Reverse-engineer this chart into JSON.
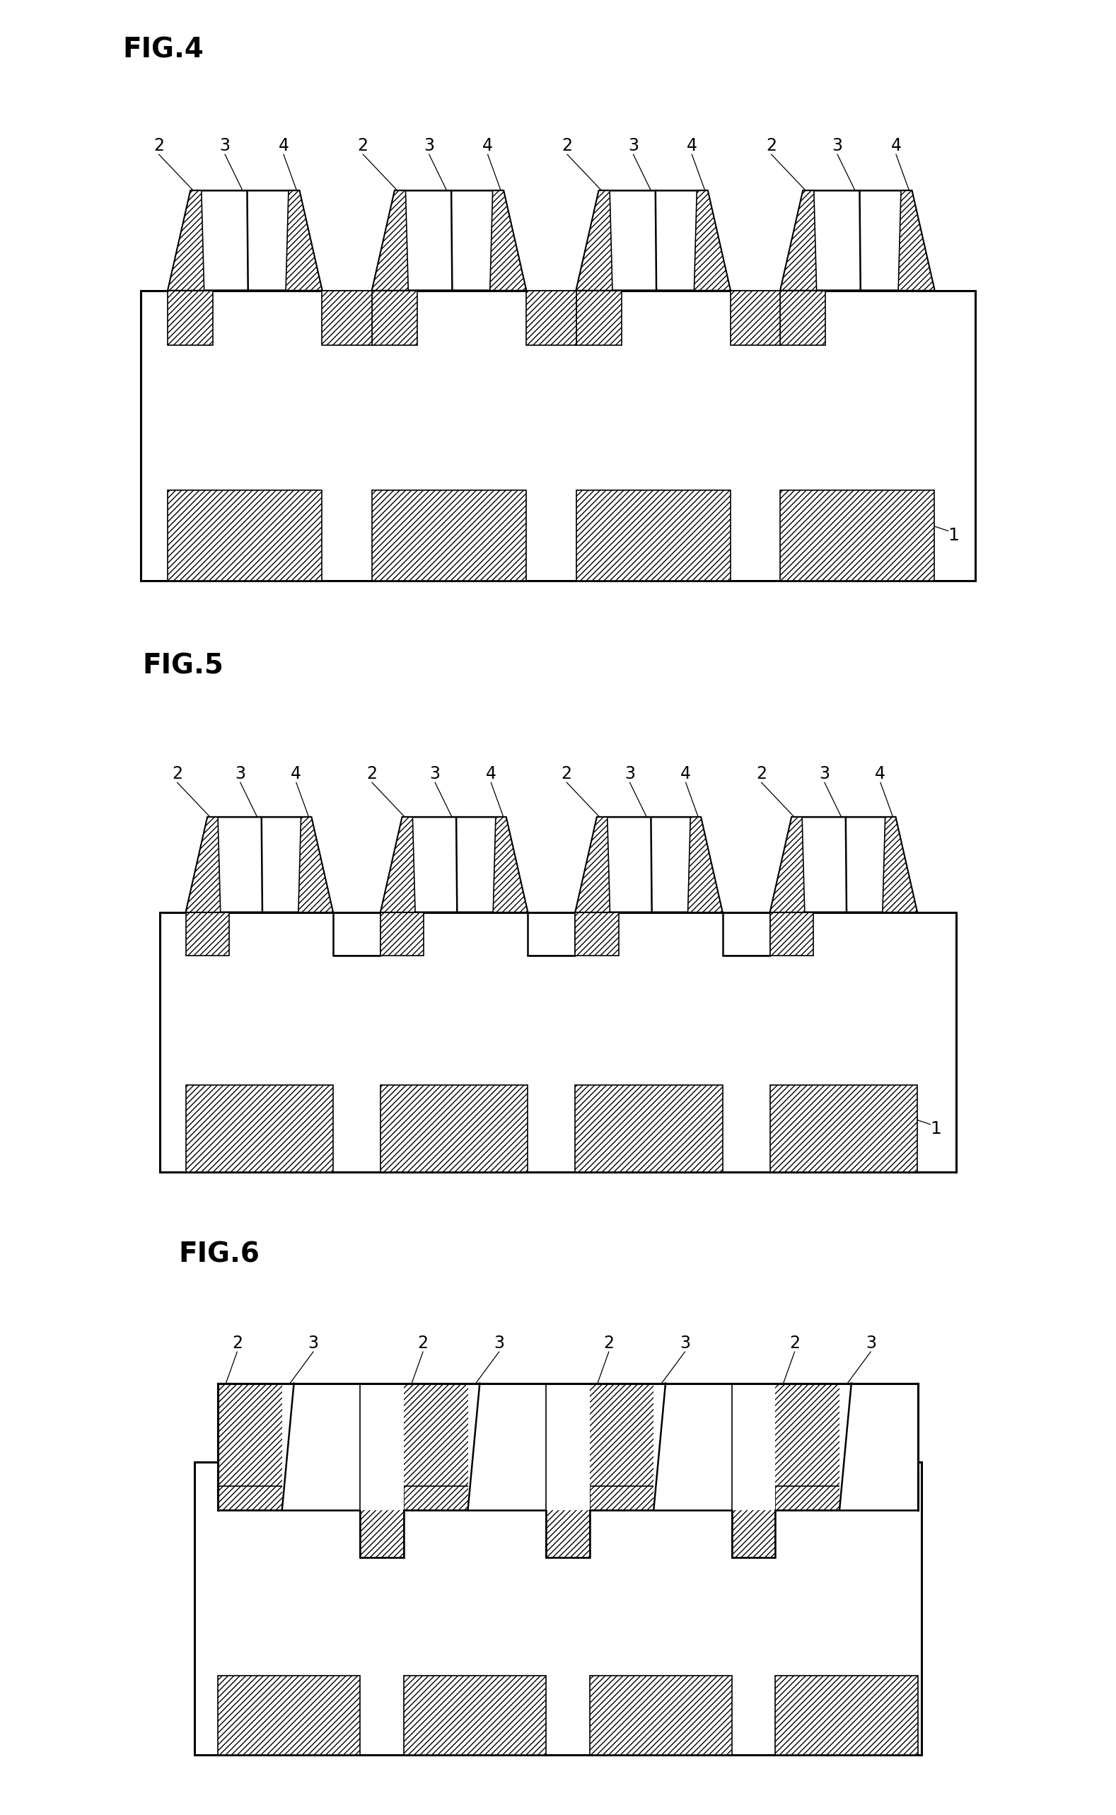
{
  "bg": "#ffffff",
  "lc": "#000000",
  "fig4_title": "FIG.4",
  "fig5_title": "FIG.5",
  "fig6_title": "FIG.6",
  "title_fs": 28,
  "label_fs": 18,
  "lw_thick": 2.2,
  "lw_med": 1.8,
  "lw_thin": 1.2
}
